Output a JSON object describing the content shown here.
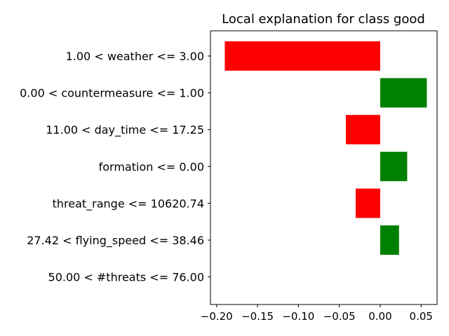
{
  "chart_data": {
    "type": "bar",
    "orientation": "horizontal",
    "title": "Local explanation for class good",
    "xlabel": "",
    "ylabel": "",
    "xlim": [
      -0.2075,
      0.0695
    ],
    "x_ticks": [
      -0.2,
      -0.15,
      -0.1,
      -0.05,
      0.0,
      0.05
    ],
    "x_tick_labels": [
      "−0.20",
      "−0.15",
      "−0.10",
      "−0.05",
      "0.00",
      "0.05"
    ],
    "categories": [
      "1.00 < weather <= 3.00",
      "0.00 < countermeasure <= 1.00",
      "11.00 < day_time <= 17.25",
      "formation <= 0.00",
      "threat_range <= 10620.74",
      "27.42 < flying_speed <= 38.46",
      "50.00 < #threats <= 76.00"
    ],
    "values": [
      -0.19,
      0.057,
      -0.042,
      0.033,
      -0.03,
      0.023,
      0.0
    ],
    "colors": {
      "positive": "#008000",
      "negative": "#ff0000"
    },
    "grid": false,
    "legend": "none"
  }
}
